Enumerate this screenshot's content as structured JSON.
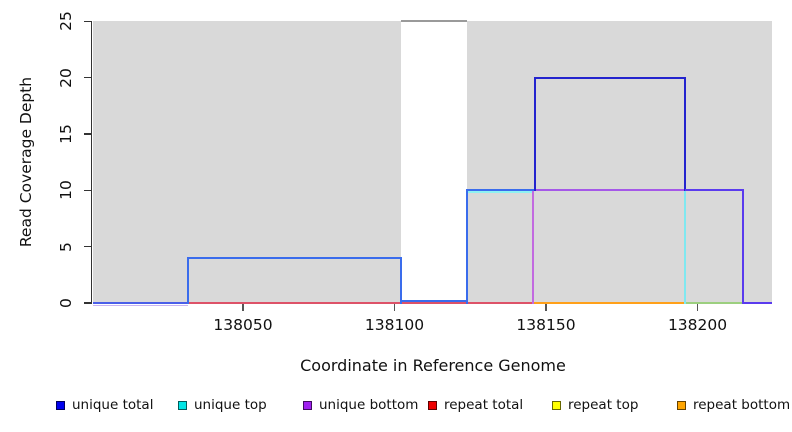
{
  "chart_data": {
    "type": "line",
    "step": true,
    "title": "",
    "xlabel": "Coordinate in Reference Genome",
    "ylabel": "Read Coverage Depth",
    "xlim": [
      138000,
      138225
    ],
    "ylim": [
      0,
      25
    ],
    "x_ticks": [
      138050,
      138100,
      138150,
      138200
    ],
    "y_ticks": [
      0,
      5,
      10,
      15,
      20,
      25
    ],
    "grid": false,
    "legend_position": "bottom",
    "plot_background": "#d9d9d9",
    "masked_region": {
      "start": 138102,
      "end": 138124,
      "fill": "#ffffff",
      "clipped_line_depth": 25,
      "clipped_line_color": "#9a9a9a"
    },
    "series": [
      {
        "name": "unique total",
        "color": "#0000ee",
        "points": [
          [
            138000,
            0
          ],
          [
            138032,
            0
          ],
          [
            138032,
            4
          ],
          [
            138102,
            4
          ],
          [
            138102,
            0
          ],
          [
            138124,
            0
          ],
          [
            138124,
            10
          ],
          [
            138146,
            10
          ],
          [
            138146,
            20
          ],
          [
            138196,
            20
          ],
          [
            138196,
            10
          ],
          [
            138215,
            10
          ],
          [
            138215,
            0
          ],
          [
            138225,
            0
          ]
        ]
      },
      {
        "name": "unique top",
        "color": "#00e6e6",
        "points": [
          [
            138000,
            0
          ],
          [
            138124,
            0
          ],
          [
            138124,
            10
          ],
          [
            138196,
            10
          ],
          [
            138196,
            0
          ],
          [
            138225,
            0
          ]
        ]
      },
      {
        "name": "unique bottom",
        "color": "#a020f0",
        "points": [
          [
            138000,
            0
          ],
          [
            138146,
            0
          ],
          [
            138146,
            10
          ],
          [
            138215,
            10
          ],
          [
            138215,
            0
          ],
          [
            138225,
            0
          ]
        ]
      },
      {
        "name": "repeat total",
        "color": "#ee0000",
        "points": [
          [
            138032,
            0
          ],
          [
            138146,
            0
          ]
        ]
      },
      {
        "name": "repeat top",
        "color": "#ffff00",
        "points": [
          [
            138196,
            0
          ],
          [
            138215,
            0
          ]
        ]
      },
      {
        "name": "repeat bottom",
        "color": "#ffa500",
        "points": [
          [
            138146,
            0
          ],
          [
            138196,
            0
          ]
        ]
      }
    ]
  },
  "axes": {
    "x": {
      "label": "Coordinate in Reference Genome",
      "ticks": [
        "138050",
        "138100",
        "138150",
        "138200"
      ],
      "tick_coords": [
        138050,
        138100,
        138150,
        138200
      ]
    },
    "y": {
      "label": "Read Coverage Depth",
      "ticks": [
        "0",
        "5",
        "10",
        "15",
        "20",
        "25"
      ],
      "tick_values": [
        0,
        5,
        10,
        15,
        20,
        25
      ]
    }
  },
  "legend": {
    "items": [
      {
        "label": "unique total",
        "color": "#0000ee"
      },
      {
        "label": "unique top",
        "color": "#00e6e6"
      },
      {
        "label": "unique bottom",
        "color": "#a020f0"
      },
      {
        "label": "repeat total",
        "color": "#ee0000"
      },
      {
        "label": "repeat top",
        "color": "#ffff00"
      },
      {
        "label": "repeat bottom",
        "color": "#ffa500"
      }
    ]
  },
  "render_segments": [
    {
      "t": "h",
      "a": 138000.5,
      "b": 138032,
      "d": 0,
      "col": "#c9b4f2",
      "w": 1,
      "nudge": 2
    },
    {
      "t": "h",
      "a": 138032,
      "b": 138146,
      "d": 0,
      "col": "#dd5268",
      "w": 2
    },
    {
      "t": "h",
      "a": 138000.5,
      "b": 138032,
      "d": 0,
      "col": "#4a5fe8",
      "w": 2
    },
    {
      "t": "h",
      "a": 138146,
      "b": 138196,
      "d": 0,
      "col": "#ffa019",
      "w": 2
    },
    {
      "t": "h",
      "a": 138196,
      "b": 138215,
      "d": 0,
      "col": "#9ccf7f",
      "w": 2
    },
    {
      "t": "h",
      "a": 138215,
      "b": 138224.5,
      "d": 0,
      "col": "#5a3bee",
      "w": 2
    },
    {
      "t": "h",
      "a": 138102,
      "b": 138124,
      "d": 0,
      "col": "#3a6cec",
      "w": 2,
      "nudge": -2
    },
    {
      "t": "h",
      "a": 138102,
      "b": 138124,
      "d": 25,
      "col": "#9a9a9a",
      "w": 2
    },
    {
      "t": "h",
      "a": 138124,
      "b": 138146,
      "d": 10,
      "col": "#8ef2f2",
      "w": 2,
      "nudge": 2
    },
    {
      "t": "v",
      "a": 138145.7,
      "d1": 0,
      "d2": 10,
      "col": "#c26ae0",
      "w": 2
    },
    {
      "t": "h",
      "a": 138146,
      "b": 138196,
      "d": 10,
      "col": "#a558e8",
      "w": 2
    },
    {
      "t": "v",
      "a": 138196,
      "d1": 10,
      "d2": 0,
      "col": "#7fe8f0",
      "w": 2
    },
    {
      "t": "h",
      "a": 138032,
      "b": 138102,
      "d": 4,
      "col": "#3a6cec",
      "w": 2
    },
    {
      "t": "v",
      "a": 138032,
      "d1": 0,
      "d2": 4,
      "col": "#3a6cec",
      "w": 2
    },
    {
      "t": "v",
      "a": 138102,
      "d1": 0,
      "d2": 4,
      "col": "#3a6cec",
      "w": 2
    },
    {
      "t": "v",
      "a": 138124,
      "d1": 0,
      "d2": 10,
      "col": "#3a6cec",
      "w": 2
    },
    {
      "t": "h",
      "a": 138124,
      "b": 138146,
      "d": 10,
      "col": "#3a6cec",
      "w": 2
    },
    {
      "t": "v",
      "a": 138146.4,
      "d1": 10,
      "d2": 20,
      "col": "#2424ce",
      "w": 2
    },
    {
      "t": "h",
      "a": 138146,
      "b": 138196,
      "d": 20,
      "col": "#2424ce",
      "w": 2
    },
    {
      "t": "v",
      "a": 138196,
      "d1": 20,
      "d2": 10,
      "col": "#2424ce",
      "w": 2
    },
    {
      "t": "h",
      "a": 138196,
      "b": 138215,
      "d": 10,
      "col": "#5a3bee",
      "w": 2
    },
    {
      "t": "v",
      "a": 138215,
      "d1": 10,
      "d2": 0,
      "col": "#5a3bee",
      "w": 2
    }
  ]
}
